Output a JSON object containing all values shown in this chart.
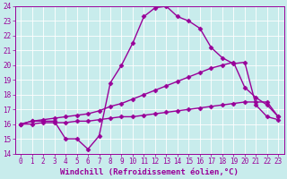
{
  "background_color": "#c8ecec",
  "line_color": "#990099",
  "xlim": [
    -0.5,
    23.5
  ],
  "ylim": [
    14,
    24
  ],
  "xticks": [
    0,
    1,
    2,
    3,
    4,
    5,
    6,
    7,
    8,
    9,
    10,
    11,
    12,
    13,
    14,
    15,
    16,
    17,
    18,
    19,
    20,
    21,
    22,
    23
  ],
  "yticks": [
    14,
    15,
    16,
    17,
    18,
    19,
    20,
    21,
    22,
    23,
    24
  ],
  "line1_x": [
    0,
    1,
    2,
    3,
    4,
    5,
    6,
    7,
    8,
    9,
    10,
    11,
    12,
    13,
    14,
    15,
    16,
    17,
    18,
    19,
    20,
    21,
    22,
    23
  ],
  "line1_y": [
    16.0,
    16.2,
    16.2,
    16.2,
    15.0,
    15.0,
    14.3,
    15.2,
    18.8,
    20.0,
    21.5,
    23.3,
    23.9,
    24.0,
    23.3,
    23.0,
    22.5,
    21.2,
    20.5,
    20.1,
    20.2,
    17.3,
    16.5,
    16.3
  ],
  "line2_x": [
    0,
    1,
    2,
    3,
    4,
    5,
    6,
    7,
    8,
    9,
    10,
    11,
    12,
    13,
    14,
    15,
    16,
    17,
    18,
    19,
    20,
    21,
    22,
    23
  ],
  "line2_y": [
    16.0,
    16.2,
    16.3,
    16.4,
    16.5,
    16.6,
    16.7,
    16.9,
    17.2,
    17.4,
    17.7,
    18.0,
    18.3,
    18.6,
    18.9,
    19.2,
    19.5,
    19.8,
    20.0,
    20.2,
    18.5,
    17.8,
    17.3,
    16.5
  ],
  "line3_x": [
    0,
    1,
    2,
    3,
    4,
    5,
    6,
    7,
    8,
    9,
    10,
    11,
    12,
    13,
    14,
    15,
    16,
    17,
    18,
    19,
    20,
    21,
    22,
    23
  ],
  "line3_y": [
    16.0,
    16.0,
    16.1,
    16.1,
    16.1,
    16.2,
    16.2,
    16.3,
    16.4,
    16.5,
    16.5,
    16.6,
    16.7,
    16.8,
    16.9,
    17.0,
    17.1,
    17.2,
    17.3,
    17.4,
    17.5,
    17.5,
    17.5,
    16.5
  ],
  "xlabel": "Windchill (Refroidissement éolien,°C)",
  "marker": "D",
  "markersize": 2.5,
  "linewidth": 1.0,
  "tick_fontsize": 5.5,
  "label_fontsize": 6.5
}
